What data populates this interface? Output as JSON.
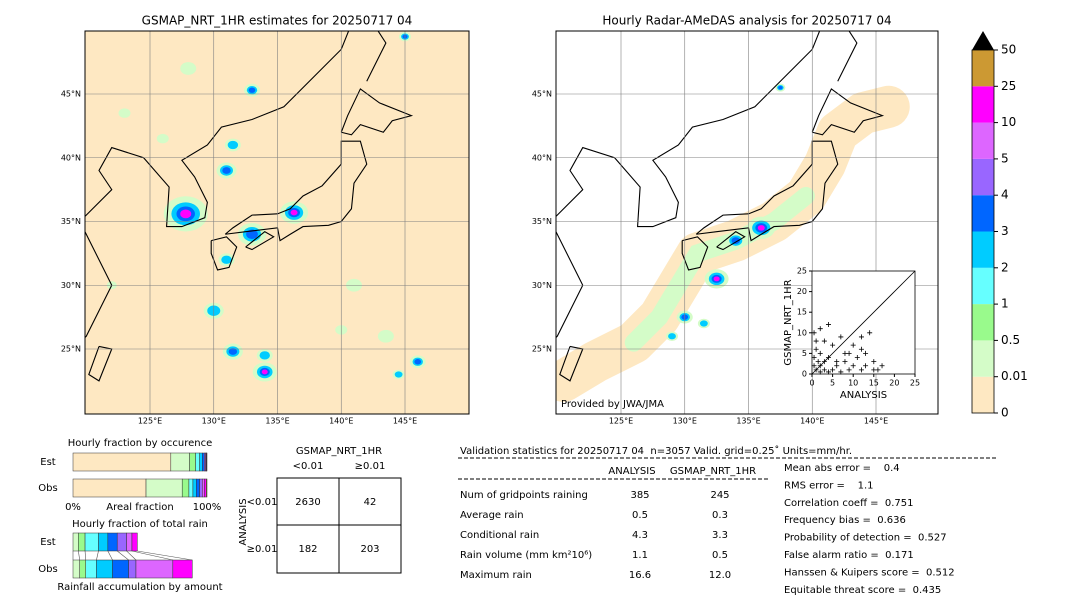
{
  "maps": [
    {
      "title": "GSMAP_NRT_1HR estimates for 20250717 04",
      "lat_labels": [
        "25°N",
        "30°N",
        "35°N",
        "40°N",
        "45°N"
      ],
      "lon_labels": [
        "125°E",
        "130°E",
        "135°E",
        "140°E",
        "145°E"
      ]
    },
    {
      "title": "Hourly Radar-AMeDAS analysis for 20250717 04",
      "lat_labels": [
        "25°N",
        "30°N",
        "35°N",
        "40°N",
        "45°N"
      ],
      "lon_labels": [
        "125°E",
        "130°E",
        "135°E",
        "140°E",
        "145°E"
      ],
      "credit": "Provided by JWA/JMA"
    }
  ],
  "colorbar": {
    "labels": [
      "0",
      "0.01",
      "0.5",
      "1",
      "2",
      "3",
      "4",
      "5",
      "10",
      "25",
      "50"
    ],
    "colors": [
      "#fee8c2",
      "#d4fcc8",
      "#99fa8c",
      "#66ffff",
      "#00ccff",
      "#0066ff",
      "#9966ff",
      "#dd66ff",
      "#ff00ff",
      "#cc9933"
    ]
  },
  "chart_data": [
    {
      "type": "scatter",
      "xlabel": "ANALYSIS",
      "ylabel": "GSMAP_NRT_1HR",
      "xlim": [
        0,
        25
      ],
      "ylim": [
        0,
        25
      ],
      "xticks": [
        0,
        5,
        10,
        15,
        20,
        25
      ],
      "yticks": [
        0,
        5,
        10,
        15,
        20,
        25
      ],
      "x": [
        1,
        0.5,
        2,
        1.5,
        3,
        2,
        4,
        0.5,
        5,
        3,
        6,
        2,
        7,
        1,
        8,
        4,
        9,
        10,
        11,
        12,
        13,
        15,
        15,
        16,
        12,
        10,
        14,
        12,
        9,
        5,
        3,
        7,
        1,
        0.5,
        2,
        4,
        6,
        8,
        17,
        13
      ],
      "y": [
        1,
        2,
        0.5,
        3,
        1,
        2,
        0.5,
        4,
        1,
        3,
        2,
        5,
        0.5,
        6,
        3,
        4,
        1,
        2,
        4,
        1,
        2,
        3,
        1,
        1,
        6,
        7,
        10,
        9,
        5,
        7,
        8,
        9,
        8,
        10,
        11,
        12,
        3,
        5,
        2,
        5
      ],
      "color": "#000000"
    },
    {
      "type": "stacked-hbar",
      "title": "Hourly fraction by occurence",
      "xlabel": "Areal fraction",
      "categories": [
        "Est",
        "Obs"
      ],
      "xlim": [
        0,
        100
      ],
      "xticks": [
        {
          "value": 0,
          "label": "0%"
        },
        {
          "value": 100,
          "label": "100%"
        }
      ],
      "series": [
        {
          "color": "#fee8c2",
          "values": [
            73,
            54.5
          ]
        },
        {
          "color": "#d4fcc8",
          "values": [
            14,
            27
          ]
        },
        {
          "color": "#99fa8c",
          "values": [
            4.5,
            5
          ]
        },
        {
          "color": "#66ffff",
          "values": [
            3,
            3
          ]
        },
        {
          "color": "#00ccff",
          "values": [
            2,
            2.5
          ]
        },
        {
          "color": "#0066ff",
          "values": [
            1.5,
            2.5
          ]
        },
        {
          "color": "#9966ff",
          "values": [
            0.8,
            2
          ]
        },
        {
          "color": "#dd66ff",
          "values": [
            0.6,
            1.5
          ]
        },
        {
          "color": "#ff00ff",
          "values": [
            0.4,
            1.5
          ]
        },
        {
          "color": "#cc9933",
          "values": [
            0.2,
            0.5
          ]
        }
      ]
    },
    {
      "type": "stacked-hbar",
      "title": "Hourly fraction of total rain",
      "xlabel": "Rainfall accumulation by amount",
      "categories": [
        "Est",
        "Obs"
      ],
      "xlim": [
        0,
        100
      ],
      "connect": true,
      "series": [
        {
          "color": "#d4fcc8",
          "values": [
            4,
            5
          ]
        },
        {
          "color": "#99fa8c",
          "values": [
            5,
            4.5
          ]
        },
        {
          "color": "#66ffff",
          "values": [
            10,
            8
          ]
        },
        {
          "color": "#00ccff",
          "values": [
            7,
            12
          ]
        },
        {
          "color": "#0066ff",
          "values": [
            7,
            12
          ]
        },
        {
          "color": "#9966ff",
          "values": [
            7,
            5.5
          ]
        },
        {
          "color": "#dd66ff",
          "values": [
            4,
            27.5
          ]
        },
        {
          "color": "#ff00ff",
          "values": [
            4,
            14.5
          ]
        }
      ]
    }
  ],
  "contingency": {
    "title": "GSMAP_NRT_1HR",
    "col_labels": [
      "<0.01",
      "≥0.01"
    ],
    "row_title": "ANALYSIS",
    "row_labels": [
      "<0.01",
      "≥0.01"
    ],
    "cells": [
      [
        "2630",
        "42"
      ],
      [
        "182",
        "203"
      ]
    ]
  },
  "stats": {
    "title": "Validation statistics for 20250717 04  n=3057 Valid. grid=0.25˚ Units=mm/hr.",
    "columns": [
      "ANALYSIS",
      "GSMAP_NRT_1HR"
    ],
    "rows": [
      [
        "Num of gridpoints raining",
        "385",
        "245"
      ],
      [
        "Average rain",
        "0.5",
        "0.3"
      ],
      [
        "Conditional rain",
        "4.3",
        "3.3"
      ],
      [
        "Rain volume (mm km²10⁶)",
        "1.1",
        "0.5"
      ],
      [
        "Maximum rain",
        "16.6",
        "12.0"
      ]
    ],
    "scores": [
      "Mean abs error =    0.4",
      "RMS error =    1.1",
      "Correlation coeff =  0.751",
      "Frequency bias =  0.636",
      "Probability of detection =  0.527",
      "False alarm ratio =  0.171",
      "Hanssen & Kuipers score =  0.512",
      "Equitable threat score =  0.435"
    ]
  }
}
